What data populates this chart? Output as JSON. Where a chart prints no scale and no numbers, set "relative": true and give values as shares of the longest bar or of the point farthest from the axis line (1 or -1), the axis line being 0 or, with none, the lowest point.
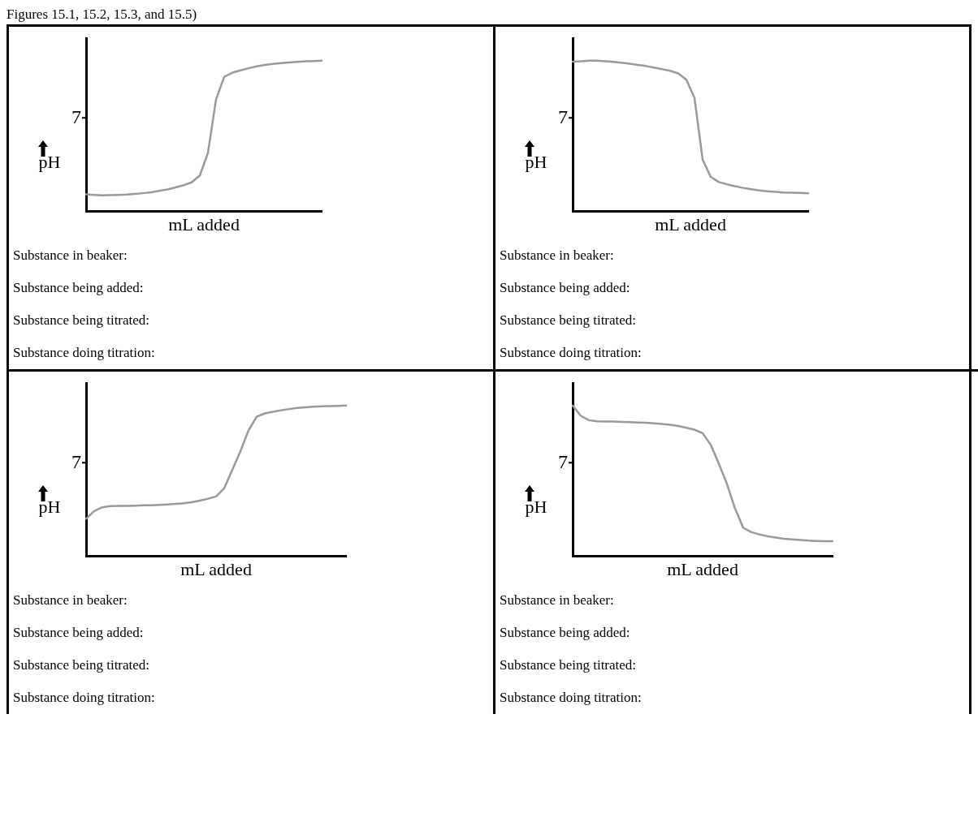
{
  "chart_data": [
    {
      "type": "line",
      "title": "Figures 15.1, 15.2, 15.3, and 15.5)",
      "relative": true,
      "ylabel": "pH",
      "xlabel": "mL added",
      "categories": [
        null,
        null,
        null,
        null,
        null,
        null,
        null,
        null,
        null,
        null,
        null,
        null,
        null,
        null,
        null,
        null,
        null,
        null,
        null,
        null,
        null,
        null,
        null,
        null,
        null,
        null,
        null,
        null,
        null,
        null
      ],
      "series": [
        {
          "color": "#999999",
          "values": [
            0.114,
            0.11,
            0.107,
            0.108,
            0.11,
            0.112,
            0.116,
            0.121,
            0.127,
            0.136,
            0.146,
            0.159,
            0.174,
            0.193,
            0.239,
            0.389,
            0.744,
            0.893,
            0.921,
            0.936,
            0.95,
            0.963,
            0.972,
            0.979,
            0.985,
            0.989,
            0.993,
            0.996,
            0.998,
            1.0
          ]
        }
      ],
      "annotations": [
        "7",
        "Substance in beaker:",
        "Substance being added:",
        "Substance being titrated:",
        "Substance doing titration:"
      ]
    },
    {
      "type": "line",
      "relative": true,
      "ylabel": "pH",
      "xlabel": "mL added",
      "categories": [
        null,
        null,
        null,
        null,
        null,
        null,
        null,
        null,
        null,
        null,
        null,
        null,
        null,
        null,
        null,
        null,
        null,
        null,
        null,
        null,
        null,
        null,
        null,
        null,
        null,
        null,
        null,
        null,
        null,
        null
      ],
      "series": [
        {
          "color": "#999999",
          "values": [
            0.994,
            0.996,
            1.0,
            1.0,
            0.996,
            0.993,
            0.987,
            0.98,
            0.972,
            0.965,
            0.955,
            0.944,
            0.933,
            0.916,
            0.874,
            0.753,
            0.344,
            0.229,
            0.195,
            0.18,
            0.167,
            0.156,
            0.147,
            0.139,
            0.134,
            0.13,
            0.126,
            0.125,
            0.123,
            0.121
          ]
        }
      ],
      "annotations": [
        "7",
        "Substance in beaker:",
        "Substance being added:",
        "Substance being titrated:",
        "Substance doing titration:"
      ]
    },
    {
      "type": "line",
      "relative": true,
      "ylabel": "pH",
      "xlabel": "mL added",
      "categories": [
        null,
        null,
        null,
        null,
        null,
        null,
        null,
        null,
        null,
        null,
        null,
        null,
        null,
        null,
        null,
        null,
        null,
        null,
        null,
        null,
        null,
        null,
        null,
        null,
        null,
        null,
        null,
        null,
        null,
        null,
        null,
        null,
        null
      ],
      "series": [
        {
          "color": "#999999",
          "values": [
            0.249,
            0.3,
            0.325,
            0.333,
            0.334,
            0.334,
            0.336,
            0.338,
            0.339,
            0.341,
            0.344,
            0.348,
            0.352,
            0.359,
            0.369,
            0.382,
            0.397,
            0.451,
            0.574,
            0.697,
            0.836,
            0.926,
            0.948,
            0.959,
            0.969,
            0.977,
            0.984,
            0.989,
            0.992,
            0.995,
            0.997,
            0.998,
            1.0
          ]
        }
      ],
      "annotations": [
        "7",
        "Substance in beaker:",
        "Substance being added:",
        "Substance being titrated:",
        "Substance doing titration:"
      ]
    },
    {
      "type": "line",
      "relative": true,
      "ylabel": "pH",
      "xlabel": "mL added",
      "categories": [
        null,
        null,
        null,
        null,
        null,
        null,
        null,
        null,
        null,
        null,
        null,
        null,
        null,
        null,
        null,
        null,
        null,
        null,
        null,
        null,
        null,
        null,
        null,
        null,
        null,
        null,
        null,
        null,
        null,
        null,
        null,
        null,
        null
      ],
      "series": [
        {
          "color": "#999999",
          "values": [
            1.0,
            0.932,
            0.903,
            0.896,
            0.894,
            0.894,
            0.892,
            0.89,
            0.888,
            0.886,
            0.882,
            0.878,
            0.873,
            0.865,
            0.853,
            0.84,
            0.817,
            0.739,
            0.614,
            0.479,
            0.315,
            0.189,
            0.16,
            0.145,
            0.133,
            0.124,
            0.116,
            0.112,
            0.108,
            0.104,
            0.102,
            0.1,
            0.1
          ]
        }
      ],
      "annotations": [
        "7",
        "Substance in beaker:",
        "Substance being added:",
        "Substance being titrated:",
        "Substance doing titration:"
      ]
    }
  ]
}
